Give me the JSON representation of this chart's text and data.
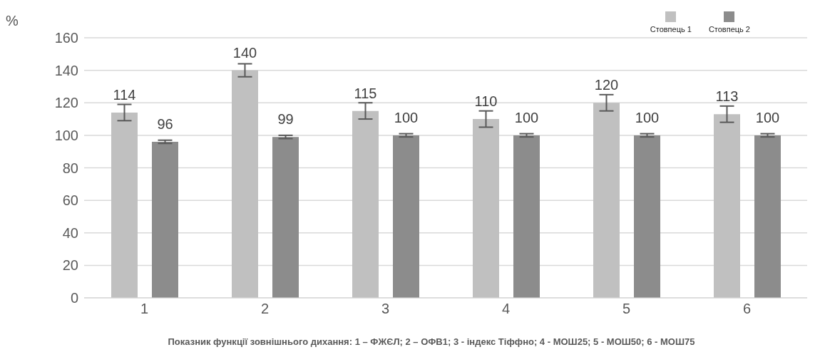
{
  "chart_data": {
    "type": "bar",
    "xlabel": "Показник функції зовнішнього дихання: 1 – ФЖЄЛ; 2 – ОФВ1; 3 - індекс Тіффно; 4 - МОШ25; 5 - МОШ50; 6 - МОШ75",
    "ylabel": "%",
    "categories": [
      "1",
      "2",
      "3",
      "4",
      "5",
      "6"
    ],
    "series": [
      {
        "name": "Стовпець 1",
        "color": "#c0c0c0",
        "values": [
          114,
          140,
          115,
          110,
          120,
          113
        ],
        "errors": [
          5,
          4,
          5,
          5,
          5,
          5
        ]
      },
      {
        "name": "Стовпець 2",
        "color": "#8c8c8c",
        "values": [
          96,
          99,
          100,
          100,
          100,
          100
        ],
        "errors": [
          1,
          1,
          1,
          1,
          1,
          1
        ]
      }
    ],
    "ylim": [
      0,
      160
    ],
    "yticks": [
      0,
      20,
      40,
      60,
      80,
      100,
      120,
      140,
      160
    ],
    "grid": "y",
    "legend": "top right",
    "data_labels": true
  }
}
